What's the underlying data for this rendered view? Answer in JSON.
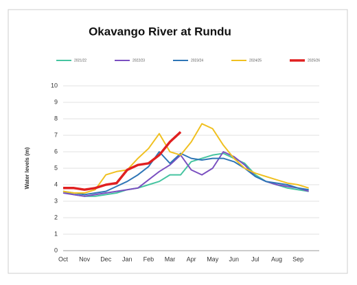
{
  "chart_data": {
    "type": "line",
    "title": "Okavango River at Rundu",
    "y_label": "Water levels (m)",
    "categories": [
      "Oct",
      null,
      "Nov",
      null,
      "Dec",
      null,
      "Jan",
      null,
      "Feb",
      null,
      "Mar",
      null,
      "Apr",
      null,
      "May",
      null,
      "Jun",
      null,
      "Jul",
      null,
      "Aug",
      null,
      "Sep",
      null
    ],
    "series": [
      {
        "name": "2021/22",
        "color": "#45c4a0",
        "values": [
          3.6,
          3.4,
          3.3,
          3.3,
          3.4,
          3.5,
          3.7,
          3.8,
          4.0,
          4.2,
          4.6,
          4.6,
          5.4,
          5.6,
          5.8,
          5.9,
          5.6,
          5.3,
          4.6,
          4.2,
          4.0,
          3.8,
          3.7,
          3.6
        ]
      },
      {
        "name": "2022/23",
        "color": "#7a4fc0",
        "values": [
          3.5,
          3.4,
          3.3,
          3.4,
          3.5,
          3.6,
          3.7,
          3.8,
          4.3,
          4.8,
          5.2,
          5.8,
          4.9,
          4.6,
          5.0,
          6.0,
          5.7,
          5.2,
          4.5,
          4.2,
          4.0,
          3.9,
          3.8,
          3.6
        ]
      },
      {
        "name": "2023/24",
        "color": "#2e75b6",
        "values": [
          3.6,
          3.5,
          3.4,
          3.5,
          3.6,
          3.9,
          4.2,
          4.6,
          5.1,
          6.0,
          5.3,
          5.9,
          5.6,
          5.5,
          5.6,
          5.6,
          5.4,
          5.0,
          4.5,
          4.2,
          4.1,
          4.0,
          3.8,
          3.7
        ]
      },
      {
        "name": "2024/25",
        "color": "#f0c020",
        "values": [
          3.6,
          3.5,
          3.5,
          3.7,
          4.6,
          4.8,
          4.9,
          5.6,
          6.2,
          7.1,
          6.0,
          5.8,
          6.6,
          7.7,
          7.4,
          6.4,
          5.6,
          5.0,
          4.7,
          4.5,
          4.3,
          4.1,
          4.0,
          3.8
        ]
      },
      {
        "name": "2025/26",
        "color": "#e02020",
        "values": [
          3.8,
          3.8,
          3.7,
          3.8,
          4.0,
          4.1,
          4.9,
          5.2,
          5.3,
          5.8,
          6.6,
          7.2,
          null,
          null,
          null,
          null,
          null,
          null,
          null,
          null,
          null,
          null,
          null,
          null
        ]
      }
    ],
    "ylim": [
      0,
      10
    ],
    "yticks": [
      0,
      1,
      2,
      3,
      4,
      5,
      6,
      7,
      8,
      9,
      10
    ],
    "grid": true
  }
}
